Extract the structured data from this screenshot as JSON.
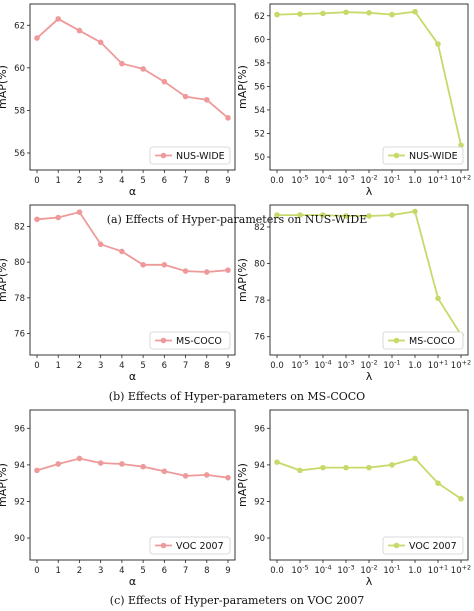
{
  "colors": {
    "alpha": "#ef9a9a",
    "lambda": "#c8d96a"
  },
  "captions": [
    "(a)  Effects of Hyper-parameters on NUS-WIDE",
    "(b)  Effects of Hyper-parameters on MS-COCO",
    "(c)  Effects of Hyper-parameters on VOC 2007"
  ],
  "chart_data": [
    {
      "type": "line",
      "dataset": "NUS-WIDE",
      "param": "alpha",
      "xlabel": "α",
      "ylabel": "mAP(%)",
      "x": [
        "0",
        "1",
        "2",
        "3",
        "4",
        "5",
        "6",
        "7",
        "8",
        "9"
      ],
      "series": [
        {
          "name": "NUS-WIDE",
          "values": [
            61.4,
            62.3,
            61.75,
            61.2,
            60.2,
            59.95,
            59.35,
            58.65,
            58.5,
            57.65
          ]
        }
      ],
      "ylim": [
        55.2,
        63.0
      ],
      "yticks": [
        56,
        58,
        60,
        62
      ],
      "legend": "lower-right"
    },
    {
      "type": "line",
      "dataset": "NUS-WIDE",
      "param": "lambda",
      "xlabel": "λ",
      "ylabel": "mAP(%)",
      "x": [
        "0.0",
        "10^-5",
        "10^-4",
        "10^-3",
        "10^-2",
        "10^-1",
        "1.0",
        "10^+1",
        "10^+2"
      ],
      "series": [
        {
          "name": "NUS-WIDE",
          "values": [
            62.1,
            62.15,
            62.2,
            62.3,
            62.25,
            62.1,
            62.35,
            59.6,
            51.0
          ]
        }
      ],
      "ylim": [
        48.9,
        63.0
      ],
      "yticks": [
        50,
        52,
        54,
        56,
        58,
        60,
        62
      ],
      "legend": "lower-right"
    },
    {
      "type": "line",
      "dataset": "MS-COCO",
      "param": "alpha",
      "xlabel": "α",
      "ylabel": "mAP(%)",
      "x": [
        "0",
        "1",
        "2",
        "3",
        "4",
        "5",
        "6",
        "7",
        "8",
        "9"
      ],
      "series": [
        {
          "name": "MS-COCO",
          "values": [
            82.4,
            82.5,
            82.8,
            81.0,
            80.6,
            79.85,
            79.85,
            79.5,
            79.45,
            79.55
          ]
        }
      ],
      "ylim": [
        74.8,
        83.2
      ],
      "yticks": [
        76,
        78,
        80,
        82
      ],
      "legend": "lower-right"
    },
    {
      "type": "line",
      "dataset": "MS-COCO",
      "param": "lambda",
      "xlabel": "λ",
      "ylabel": "mAP(%)",
      "x": [
        "0.0",
        "10^-5",
        "10^-4",
        "10^-3",
        "10^-2",
        "10^-1",
        "1.0",
        "10^+1",
        "10^+2"
      ],
      "series": [
        {
          "name": "MS-COCO",
          "values": [
            82.65,
            82.65,
            82.65,
            82.6,
            82.6,
            82.65,
            82.85,
            78.1,
            76.1
          ]
        }
      ],
      "ylim": [
        75.0,
        83.2
      ],
      "yticks": [
        76,
        78,
        80,
        82
      ],
      "legend": "lower-right"
    },
    {
      "type": "line",
      "dataset": "VOC 2007",
      "param": "alpha",
      "xlabel": "α",
      "ylabel": "mAP(%)",
      "x": [
        "0",
        "1",
        "2",
        "3",
        "4",
        "5",
        "6",
        "7",
        "8",
        "9"
      ],
      "series": [
        {
          "name": "VOC 2007",
          "values": [
            93.7,
            94.05,
            94.35,
            94.1,
            94.05,
            93.9,
            93.65,
            93.4,
            93.45,
            93.3
          ]
        }
      ],
      "ylim": [
        88.8,
        97.0
      ],
      "yticks": [
        90,
        92,
        94,
        96
      ],
      "legend": "lower-right"
    },
    {
      "type": "line",
      "dataset": "VOC 2007",
      "param": "lambda",
      "xlabel": "λ",
      "ylabel": "mAP(%)",
      "x": [
        "0.0",
        "10^-5",
        "10^-4",
        "10^-3",
        "10^-2",
        "10^-1",
        "1.0",
        "10^+1",
        "10^+2"
      ],
      "series": [
        {
          "name": "VOC 2007",
          "values": [
            94.15,
            93.7,
            93.85,
            93.85,
            93.85,
            94.0,
            94.35,
            93.0,
            92.15
          ]
        }
      ],
      "ylim": [
        88.8,
        97.0
      ],
      "yticks": [
        90,
        92,
        94,
        96
      ],
      "legend": "lower-right"
    }
  ]
}
